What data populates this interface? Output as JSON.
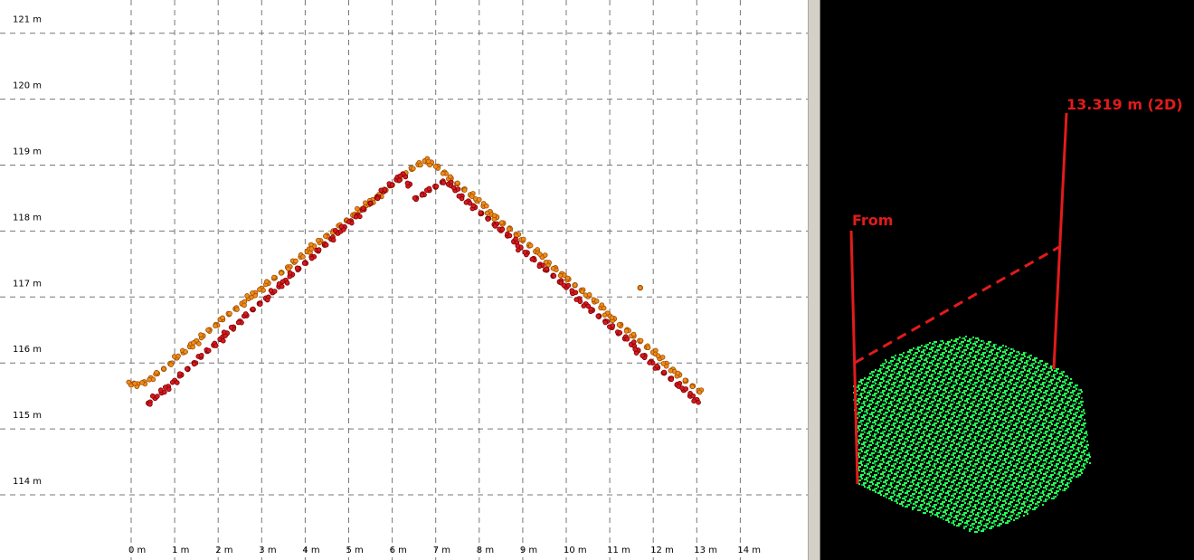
{
  "profile_view": {
    "colors": {
      "grid": "#777777",
      "upper_points": "#f08a18",
      "upper_outline": "#9a4b00",
      "lower_points": "#d71920",
      "lower_outline": "#7b0000",
      "axis_text": "#000000"
    }
  },
  "chart_data": {
    "type": "scatter",
    "title": "",
    "xlabel": "",
    "ylabel": "",
    "xlim": [
      -0.2,
      14.7
    ],
    "ylim": [
      113.8,
      121.35
    ],
    "x_ticks": [
      0,
      1,
      2,
      3,
      4,
      5,
      6,
      7,
      8,
      9,
      10,
      11,
      12,
      13,
      14
    ],
    "y_ticks": [
      114,
      115,
      116,
      117,
      118,
      119,
      120,
      121
    ],
    "x_tick_labels": [
      "0 m",
      "1 m",
      "2 m",
      "3 m",
      "4 m",
      "5 m",
      "6 m",
      "7 m",
      "8 m",
      "9 m",
      "10 m",
      "11 m",
      "12 m",
      "13 m",
      "14 m"
    ],
    "y_tick_labels": [
      "114 m",
      "115 m",
      "116 m",
      "117 m",
      "118 m",
      "119 m",
      "120 m",
      "121 m"
    ],
    "grid": true,
    "legend": "none",
    "series": [
      {
        "color": "#f08a18",
        "x": [
          0.0,
          0.15,
          0.3,
          0.45,
          0.6,
          0.75,
          0.9,
          1.05,
          1.2,
          1.35,
          1.5,
          1.65,
          1.8,
          1.95,
          2.1,
          2.25,
          2.4,
          2.55,
          2.7,
          2.85,
          3.0,
          3.15,
          3.3,
          3.45,
          3.6,
          3.75,
          3.9,
          4.05,
          4.2,
          4.35,
          4.5,
          4.65,
          4.8,
          4.95,
          5.1,
          5.25,
          5.4,
          5.55,
          5.7,
          5.85,
          6.0,
          6.15,
          6.3,
          6.45,
          6.6,
          6.75,
          6.9,
          7.05,
          7.2,
          7.35,
          7.5,
          7.65,
          7.8,
          7.95,
          8.1,
          8.25,
          8.4,
          8.55,
          8.7,
          8.85,
          9.0,
          9.15,
          9.3,
          9.45,
          9.6,
          9.75,
          9.9,
          10.05,
          10.2,
          10.35,
          10.5,
          10.65,
          10.8,
          10.95,
          11.1,
          11.25,
          11.4,
          11.55,
          11.7,
          11.85,
          12.0,
          12.15,
          12.3,
          12.45,
          12.6,
          12.75,
          12.9,
          13.05
        ],
        "y": [
          115.67,
          115.68,
          115.71,
          115.77,
          115.84,
          115.91,
          115.99,
          116.08,
          116.16,
          116.25,
          116.33,
          116.41,
          116.5,
          116.58,
          116.66,
          116.74,
          116.82,
          116.9,
          116.98,
          117.06,
          117.13,
          117.21,
          117.29,
          117.37,
          117.45,
          117.53,
          117.61,
          117.69,
          117.77,
          117.85,
          117.93,
          118.0,
          118.08,
          118.16,
          118.24,
          118.31,
          118.39,
          118.47,
          118.55,
          118.62,
          118.7,
          118.78,
          118.86,
          118.94,
          119.01,
          119.06,
          119.04,
          118.98,
          118.89,
          118.8,
          118.72,
          118.63,
          118.55,
          118.46,
          118.38,
          118.29,
          118.21,
          118.12,
          118.04,
          117.95,
          117.86,
          117.78,
          117.69,
          117.61,
          117.52,
          117.44,
          117.35,
          117.27,
          117.18,
          117.1,
          117.01,
          116.93,
          116.84,
          116.75,
          116.67,
          116.58,
          116.5,
          116.41,
          116.33,
          116.24,
          116.16,
          116.07,
          115.99,
          115.9,
          115.82,
          115.73,
          115.65,
          115.58
        ]
      },
      {
        "color": "#d71920",
        "x": [
          0.4,
          0.55,
          0.7,
          0.85,
          1.0,
          1.15,
          1.3,
          1.45,
          1.6,
          1.75,
          1.9,
          2.05,
          2.2,
          2.35,
          2.5,
          2.65,
          2.8,
          2.95,
          3.1,
          3.25,
          3.4,
          3.55,
          3.7,
          3.85,
          4.0,
          4.15,
          4.3,
          4.45,
          4.6,
          4.75,
          4.9,
          5.05,
          5.2,
          5.35,
          5.5,
          5.65,
          5.8,
          5.95,
          6.1,
          6.25,
          6.4,
          6.55,
          6.7,
          6.85,
          7.0,
          7.15,
          7.3,
          7.45,
          7.6,
          7.75,
          7.9,
          8.05,
          8.2,
          8.35,
          8.5,
          8.65,
          8.8,
          8.95,
          9.1,
          9.25,
          9.4,
          9.55,
          9.7,
          9.85,
          10.0,
          10.15,
          10.3,
          10.45,
          10.6,
          10.75,
          10.9,
          11.05,
          11.2,
          11.35,
          11.5,
          11.65,
          11.8,
          11.95,
          12.1,
          12.25,
          12.4,
          12.55,
          12.7,
          12.85,
          13.0
        ],
        "y": [
          115.39,
          115.47,
          115.55,
          115.64,
          115.73,
          115.82,
          115.91,
          116.0,
          116.09,
          116.18,
          116.27,
          116.36,
          116.45,
          116.54,
          116.63,
          116.72,
          116.81,
          116.9,
          116.98,
          117.07,
          117.16,
          117.25,
          117.34,
          117.43,
          117.52,
          117.61,
          117.7,
          117.79,
          117.88,
          117.97,
          118.06,
          118.15,
          118.24,
          118.33,
          118.42,
          118.51,
          118.6,
          118.69,
          118.78,
          118.86,
          118.71,
          118.5,
          118.56,
          118.62,
          118.67,
          118.74,
          118.71,
          118.62,
          118.53,
          118.45,
          118.36,
          118.27,
          118.19,
          118.1,
          118.01,
          117.93,
          117.84,
          117.75,
          117.67,
          117.58,
          117.49,
          117.41,
          117.32,
          117.23,
          117.15,
          117.06,
          116.97,
          116.89,
          116.8,
          116.71,
          116.63,
          116.54,
          116.45,
          116.37,
          116.28,
          116.19,
          116.11,
          116.02,
          115.93,
          115.85,
          115.76,
          115.67,
          115.59,
          115.5,
          115.44
        ]
      },
      {
        "color": "#f08a18",
        "x": [
          11.7
        ],
        "y": [
          117.14
        ]
      }
    ]
  },
  "measure_view": {
    "labels": {
      "from": "From",
      "distance": "13.319 m (2D)"
    },
    "colors": {
      "background": "#000000",
      "measure_line": "#e21b1b",
      "point_cloud": "#22ff55",
      "point_cloud_shadow": "#0ea43a"
    }
  }
}
